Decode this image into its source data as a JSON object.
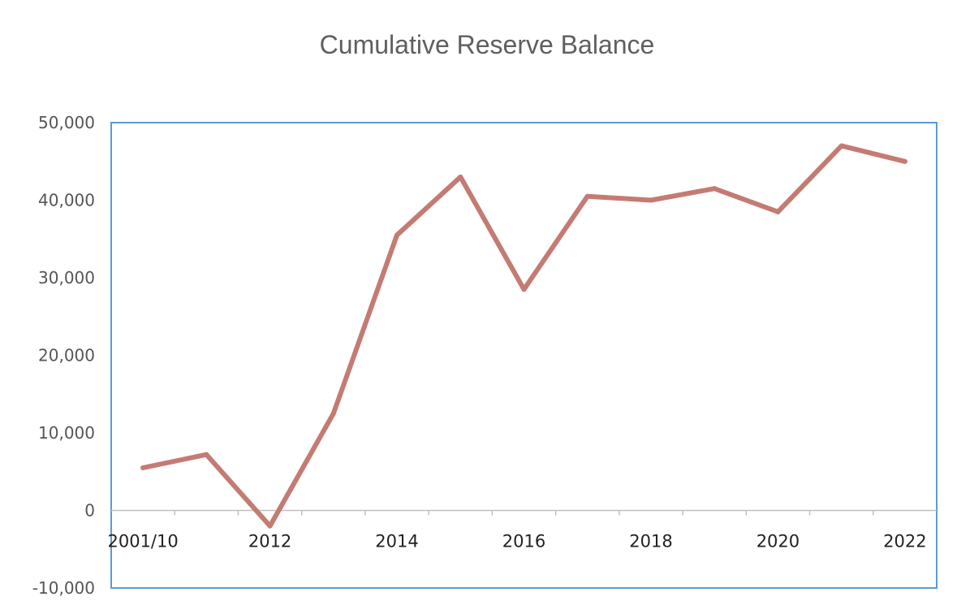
{
  "chart_data": {
    "type": "line",
    "title": "Cumulative Reserve Balance",
    "xlabel": "",
    "ylabel": "",
    "x_tick_labels": [
      "2001/10",
      "2012",
      "2014",
      "2016",
      "2018",
      "2020",
      "2022"
    ],
    "y_ticks": [
      -10000,
      0,
      10000,
      20000,
      30000,
      40000,
      50000
    ],
    "y_tick_labels": [
      "-10,000",
      "0",
      "10,000",
      "20,000",
      "30,000",
      "40,000",
      "50,000"
    ],
    "ylim": [
      -10000,
      50000
    ],
    "grid": false,
    "legend": "none",
    "series": [
      {
        "color": "#c47b74",
        "values": [
          5500,
          7200,
          -2000,
          12500,
          35500,
          43000,
          28500,
          40500,
          40000,
          41500,
          38500,
          47000,
          45000
        ]
      }
    ],
    "colors": {
      "line": "#c47b74",
      "frame": "#5b9bd5",
      "axis": "#bfbfbf"
    }
  }
}
